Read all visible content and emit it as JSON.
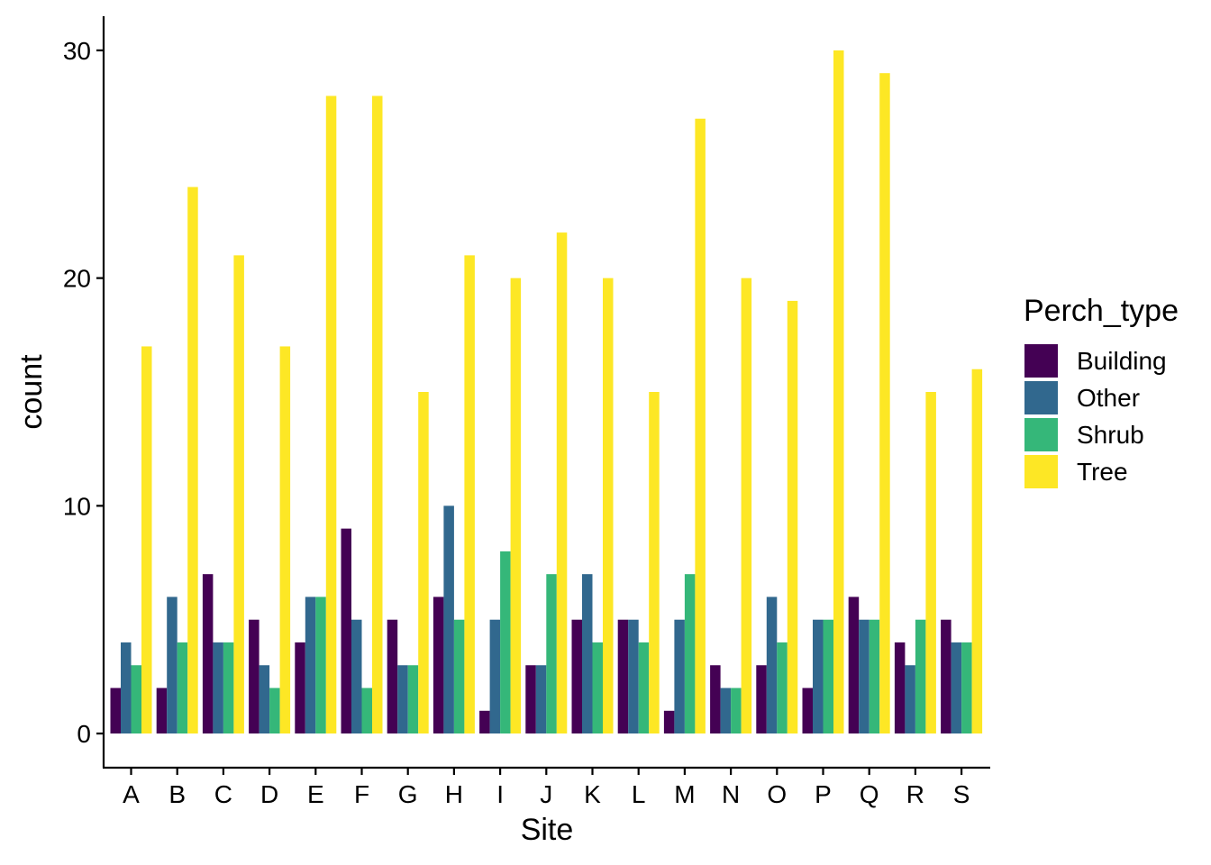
{
  "chart_data": {
    "type": "bar",
    "xlabel": "Site",
    "ylabel": "count",
    "ylim": [
      -1.5,
      31.5
    ],
    "yticks": [
      0,
      10,
      20,
      30
    ],
    "grid": false,
    "legend_title": "Perch_type",
    "legend_position": "right",
    "categories": [
      "A",
      "B",
      "C",
      "D",
      "E",
      "F",
      "G",
      "H",
      "I",
      "J",
      "K",
      "L",
      "M",
      "N",
      "O",
      "P",
      "Q",
      "R",
      "S"
    ],
    "series": [
      {
        "name": "Building",
        "color": "#440154",
        "values": [
          2,
          2,
          7,
          5,
          4,
          9,
          5,
          6,
          1,
          3,
          5,
          5,
          1,
          3,
          3,
          2,
          6,
          4,
          5
        ]
      },
      {
        "name": "Other",
        "color": "#31688E",
        "values": [
          4,
          6,
          4,
          3,
          6,
          5,
          3,
          10,
          5,
          3,
          7,
          5,
          5,
          2,
          6,
          5,
          5,
          3,
          4
        ]
      },
      {
        "name": "Shrub",
        "color": "#35B779",
        "values": [
          3,
          4,
          4,
          2,
          6,
          2,
          3,
          5,
          8,
          7,
          4,
          4,
          7,
          2,
          4,
          5,
          5,
          5,
          4
        ]
      },
      {
        "name": "Tree",
        "color": "#FDE725",
        "values": [
          17,
          24,
          21,
          17,
          28,
          28,
          15,
          21,
          20,
          22,
          20,
          15,
          27,
          20,
          19,
          30,
          29,
          15,
          16
        ]
      }
    ]
  }
}
